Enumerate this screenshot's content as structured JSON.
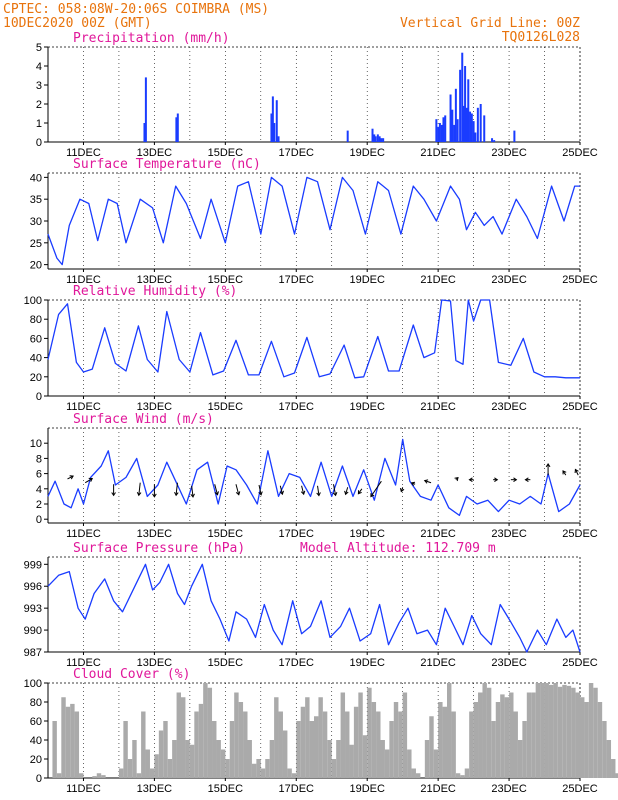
{
  "header": {
    "left_line1": "CPTEC:   058:08W-20:06S  COIMBRA (MS)",
    "left_line2": "10DEC2020 00Z (GMT)",
    "right_line1": "Vertical Grid Line: 00Z",
    "right_line2": "TQ0126L028"
  },
  "colors": {
    "header": "#e8730c",
    "title": "#e0179a",
    "series": "#1a3cff",
    "cloud": "#aaaaaa",
    "grid": "#000000"
  },
  "x_axis": {
    "start": "10DEC2020 00Z",
    "end": "25DEC2020 00Z",
    "grid": "dashed vertical at 00Z",
    "tick_labels": [
      "11DEC",
      "13DEC",
      "15DEC",
      "17DEC",
      "19DEC",
      "21DEC",
      "23DEC",
      "25DEC"
    ],
    "tick_days": [
      1,
      3,
      5,
      7,
      9,
      11,
      13,
      15
    ],
    "range_days": [
      0,
      15
    ]
  },
  "chart_data": [
    {
      "type": "bar",
      "title": "Precipitation (mm/h)",
      "ylim": [
        0,
        5
      ],
      "yticks": [
        0,
        1,
        2,
        3,
        4,
        5
      ],
      "x": [
        2.72,
        2.76,
        3.62,
        3.66,
        6.3,
        6.34,
        6.38,
        6.45,
        6.5,
        8.45,
        9.15,
        9.2,
        9.24,
        9.3,
        9.35,
        9.4,
        9.45,
        10.95,
        11.0,
        11.05,
        11.1,
        11.15,
        11.2,
        11.35,
        11.4,
        11.45,
        11.5,
        11.55,
        11.62,
        11.68,
        11.72,
        11.76,
        11.8,
        11.85,
        11.9,
        11.95,
        12.0,
        12.05,
        12.12,
        12.2,
        12.3,
        12.52,
        12.58,
        13.15
      ],
      "values": [
        1.0,
        3.4,
        1.3,
        1.5,
        1.5,
        2.4,
        1.0,
        2.2,
        0.3,
        0.6,
        0.7,
        0.4,
        0.3,
        0.4,
        0.3,
        0.2,
        0.2,
        1.2,
        0.8,
        1.0,
        0.9,
        1.3,
        1.4,
        2.5,
        1.7,
        0.9,
        2.8,
        1.2,
        3.8,
        4.7,
        1.9,
        4.0,
        1.8,
        3.3,
        1.6,
        1.5,
        1.1,
        0.5,
        1.8,
        2.0,
        1.4,
        0.2,
        0.1,
        0.6
      ]
    },
    {
      "type": "line",
      "title": "Surface Temperature (nC)",
      "ylim": [
        19,
        41
      ],
      "yticks": [
        20,
        25,
        30,
        35,
        40
      ],
      "series": [
        {
          "x": [
            0,
            0.25,
            0.4,
            0.6,
            0.9,
            1.15,
            1.4,
            1.7,
            1.95,
            2.2,
            2.6,
            2.95,
            3.25,
            3.6,
            3.9,
            4.3,
            4.6,
            5.0,
            5.35,
            5.65,
            6.0,
            6.3,
            6.6,
            6.95,
            7.3,
            7.6,
            7.95,
            8.3,
            8.6,
            8.95,
            9.3,
            9.6,
            9.95,
            10.3,
            10.6,
            10.95,
            11.35,
            11.6,
            11.8,
            12.05,
            12.3,
            12.55,
            12.8,
            13.2,
            13.5,
            13.8,
            14.2,
            14.55,
            14.85,
            15.0
          ],
          "values": [
            27,
            21.5,
            20,
            29,
            35,
            34,
            25.5,
            35,
            34,
            25,
            35,
            33,
            25,
            38,
            34,
            26,
            35,
            25,
            38,
            39,
            27,
            40,
            38,
            27,
            40,
            39,
            28,
            40,
            37,
            27,
            39,
            37,
            27,
            38,
            35,
            30,
            38,
            35,
            28,
            32,
            29,
            31,
            27,
            35,
            31,
            26,
            38,
            30,
            38,
            38
          ]
        }
      ]
    },
    {
      "type": "line",
      "title": "Relative Humidity (%)",
      "ylim": [
        0,
        100
      ],
      "yticks": [
        0,
        20,
        40,
        60,
        80,
        100
      ],
      "series": [
        {
          "x": [
            0,
            0.3,
            0.55,
            0.8,
            1.0,
            1.25,
            1.6,
            1.9,
            2.2,
            2.55,
            2.8,
            3.1,
            3.35,
            3.7,
            4.0,
            4.3,
            4.65,
            4.95,
            5.3,
            5.65,
            5.95,
            6.3,
            6.65,
            6.95,
            7.3,
            7.65,
            7.95,
            8.35,
            8.65,
            8.9,
            9.3,
            9.6,
            9.9,
            10.3,
            10.6,
            10.9,
            11.1,
            11.35,
            11.5,
            11.7,
            11.85,
            12.0,
            12.2,
            12.45,
            12.7,
            13.05,
            13.4,
            13.7,
            14.0,
            14.3,
            14.6,
            15.0
          ],
          "values": [
            38,
            85,
            96,
            35,
            25,
            28,
            71,
            34,
            26,
            73,
            38,
            25,
            88,
            38,
            25,
            66,
            22,
            26,
            58,
            22,
            22,
            57,
            20,
            24,
            61,
            20,
            23,
            53,
            19,
            20,
            62,
            26,
            26,
            74,
            40,
            45,
            100,
            99,
            37,
            33,
            100,
            78,
            100,
            100,
            35,
            32,
            60,
            25,
            20,
            20,
            19,
            19
          ]
        }
      ]
    },
    {
      "type": "line",
      "title": "Surface Wind (m/s)",
      "ylim": [
        -0.5,
        12
      ],
      "yticks": [
        0,
        2,
        4,
        6,
        8,
        10
      ],
      "series": [
        {
          "x": [
            0,
            0.2,
            0.45,
            0.65,
            0.85,
            1.0,
            1.2,
            1.5,
            1.7,
            1.9,
            2.2,
            2.5,
            2.8,
            3.1,
            3.35,
            3.6,
            3.9,
            4.2,
            4.5,
            4.8,
            5.05,
            5.3,
            5.6,
            5.9,
            6.2,
            6.5,
            6.8,
            7.1,
            7.4,
            7.7,
            8.0,
            8.3,
            8.6,
            8.9,
            9.2,
            9.5,
            9.8,
            10.0,
            10.2,
            10.5,
            10.8,
            11.0,
            11.3,
            11.6,
            11.8,
            12.1,
            12.4,
            12.7,
            13.0,
            13.3,
            13.6,
            13.9,
            14.1,
            14.4,
            14.7,
            15.0
          ],
          "values": [
            3,
            5,
            2,
            1.5,
            4,
            2,
            5.5,
            7,
            9,
            4.5,
            5.5,
            8,
            3,
            4.5,
            7.5,
            5,
            2,
            6.5,
            7.5,
            2,
            7,
            6.5,
            4.5,
            2,
            9,
            3,
            6,
            5.5,
            3,
            7.5,
            3,
            7,
            3,
            6.5,
            2.5,
            8,
            4.5,
            10.5,
            5,
            3,
            2.5,
            4.5,
            1.5,
            0.5,
            3,
            2,
            2.5,
            1,
            2.5,
            2,
            3,
            2,
            6,
            1,
            2,
            4.5
          ]
        }
      ],
      "wind_vectors": [
        {
          "x": 0.55,
          "y": 5.3,
          "u": 0.8,
          "v": 0.4
        },
        {
          "x": 1.05,
          "y": 4.8,
          "u": 1.0,
          "v": 0.6
        },
        {
          "x": 1.85,
          "y": 4.6,
          "u": 0.0,
          "v": -1.6
        },
        {
          "x": 2.6,
          "y": 4.8,
          "u": -0.2,
          "v": -1.8
        },
        {
          "x": 3.0,
          "y": 4.6,
          "u": 0.0,
          "v": -1.8
        },
        {
          "x": 3.65,
          "y": 4.8,
          "u": -0.2,
          "v": -1.8
        },
        {
          "x": 4.05,
          "y": 4.4,
          "u": 0.2,
          "v": -1.6
        },
        {
          "x": 4.7,
          "y": 4.6,
          "u": 0.4,
          "v": -1.5
        },
        {
          "x": 5.3,
          "y": 4.6,
          "u": 0.4,
          "v": -1.5
        },
        {
          "x": 5.95,
          "y": 4.5,
          "u": 0.3,
          "v": -1.4
        },
        {
          "x": 6.55,
          "y": 4.4,
          "u": 0.3,
          "v": -1.2
        },
        {
          "x": 7.15,
          "y": 4.4,
          "u": 0.3,
          "v": -1.2
        },
        {
          "x": 7.6,
          "y": 4.4,
          "u": 0.2,
          "v": -1.4
        },
        {
          "x": 8.05,
          "y": 4.6,
          "u": 0.3,
          "v": -1.6
        },
        {
          "x": 8.45,
          "y": 4.2,
          "u": -0.3,
          "v": -1.0
        },
        {
          "x": 8.85,
          "y": 4.0,
          "u": -0.5,
          "v": -0.7
        },
        {
          "x": 9.4,
          "y": 5.0,
          "u": -1.5,
          "v": -2.2
        },
        {
          "x": 10.0,
          "y": 4.2,
          "u": -0.2,
          "v": -0.6
        },
        {
          "x": 10.35,
          "y": 4.6,
          "u": -0.5,
          "v": 0.2
        },
        {
          "x": 10.8,
          "y": 4.8,
          "u": -0.9,
          "v": 0.3
        },
        {
          "x": 11.5,
          "y": 5.2,
          "u": 0.3,
          "v": 0.3
        },
        {
          "x": 12.0,
          "y": 5.2,
          "u": -0.6,
          "v": 0.0
        },
        {
          "x": 12.55,
          "y": 5.2,
          "u": 0.6,
          "v": 0.0
        },
        {
          "x": 13.05,
          "y": 5.2,
          "u": 0.8,
          "v": 0.0
        },
        {
          "x": 13.6,
          "y": 5.2,
          "u": -0.7,
          "v": 0.0
        },
        {
          "x": 14.1,
          "y": 5.8,
          "u": 0.0,
          "v": 1.6
        },
        {
          "x": 14.6,
          "y": 5.8,
          "u": -0.4,
          "v": 0.6
        },
        {
          "x": 14.95,
          "y": 5.8,
          "u": -0.4,
          "v": 0.8
        }
      ]
    },
    {
      "type": "line",
      "title": "Surface Pressure (hPa)",
      "subtitle": "Model Altitude: 112.709 m",
      "ylim": [
        987,
        1000
      ],
      "yticks": [
        987,
        990,
        993,
        996,
        999
      ],
      "series": [
        {
          "x": [
            0,
            0.3,
            0.6,
            0.85,
            1.05,
            1.3,
            1.6,
            1.85,
            2.1,
            2.45,
            2.75,
            2.95,
            3.15,
            3.4,
            3.65,
            3.85,
            4.05,
            4.35,
            4.6,
            4.85,
            5.1,
            5.3,
            5.6,
            5.85,
            6.1,
            6.35,
            6.6,
            6.9,
            7.15,
            7.4,
            7.7,
            7.95,
            8.25,
            8.5,
            8.8,
            9.1,
            9.35,
            9.6,
            9.9,
            10.15,
            10.4,
            10.7,
            10.95,
            11.2,
            11.45,
            11.7,
            11.95,
            12.2,
            12.5,
            12.75,
            13.0,
            13.3,
            13.5,
            13.8,
            14.05,
            14.35,
            14.6,
            14.8,
            15.0
          ],
          "values": [
            996,
            997.5,
            998,
            993,
            991.5,
            995,
            997,
            994,
            992.5,
            996,
            999,
            995.5,
            996.5,
            999,
            995,
            993.5,
            996,
            999,
            994,
            991.5,
            988.5,
            992.5,
            991.5,
            989,
            993.5,
            990,
            988,
            994,
            989.5,
            990.5,
            994,
            989,
            990.5,
            993,
            988.5,
            989.5,
            993.5,
            988,
            991,
            993,
            989.5,
            990,
            988,
            993,
            990.5,
            988,
            992,
            989.5,
            988,
            993.5,
            991.5,
            989,
            987,
            990,
            988,
            991.5,
            989,
            990,
            987
          ]
        }
      ]
    },
    {
      "type": "bar",
      "title": "Cloud Cover (%)",
      "ylim": [
        0,
        100
      ],
      "yticks": [
        0,
        20,
        40,
        60,
        80,
        100
      ],
      "x_start": 0,
      "x_step": 0.125,
      "values": [
        0,
        60,
        5,
        85,
        75,
        78,
        70,
        5,
        0,
        0,
        2,
        5,
        3,
        0,
        0,
        0,
        10,
        60,
        20,
        40,
        5,
        70,
        30,
        10,
        25,
        50,
        60,
        20,
        40,
        90,
        85,
        40,
        35,
        70,
        78,
        100,
        95,
        60,
        40,
        30,
        20,
        60,
        90,
        80,
        70,
        40,
        15,
        20,
        10,
        20,
        40,
        85,
        70,
        50,
        10,
        5,
        60,
        75,
        85,
        60,
        65,
        85,
        70,
        40,
        20,
        40,
        90,
        70,
        35,
        75,
        90,
        45,
        95,
        80,
        70,
        40,
        30,
        60,
        80,
        70,
        90,
        30,
        10,
        5,
        0,
        40,
        65,
        30,
        80,
        75,
        100,
        70,
        5,
        3,
        10,
        70,
        80,
        90,
        100,
        95,
        60,
        80,
        88,
        85,
        90,
        70,
        40,
        60,
        90,
        90,
        100,
        100,
        100,
        98,
        100,
        96,
        98,
        97,
        95,
        90,
        85,
        80,
        100,
        95,
        80,
        60,
        40,
        20,
        5,
        3,
        10,
        60,
        90
      ]
    }
  ]
}
